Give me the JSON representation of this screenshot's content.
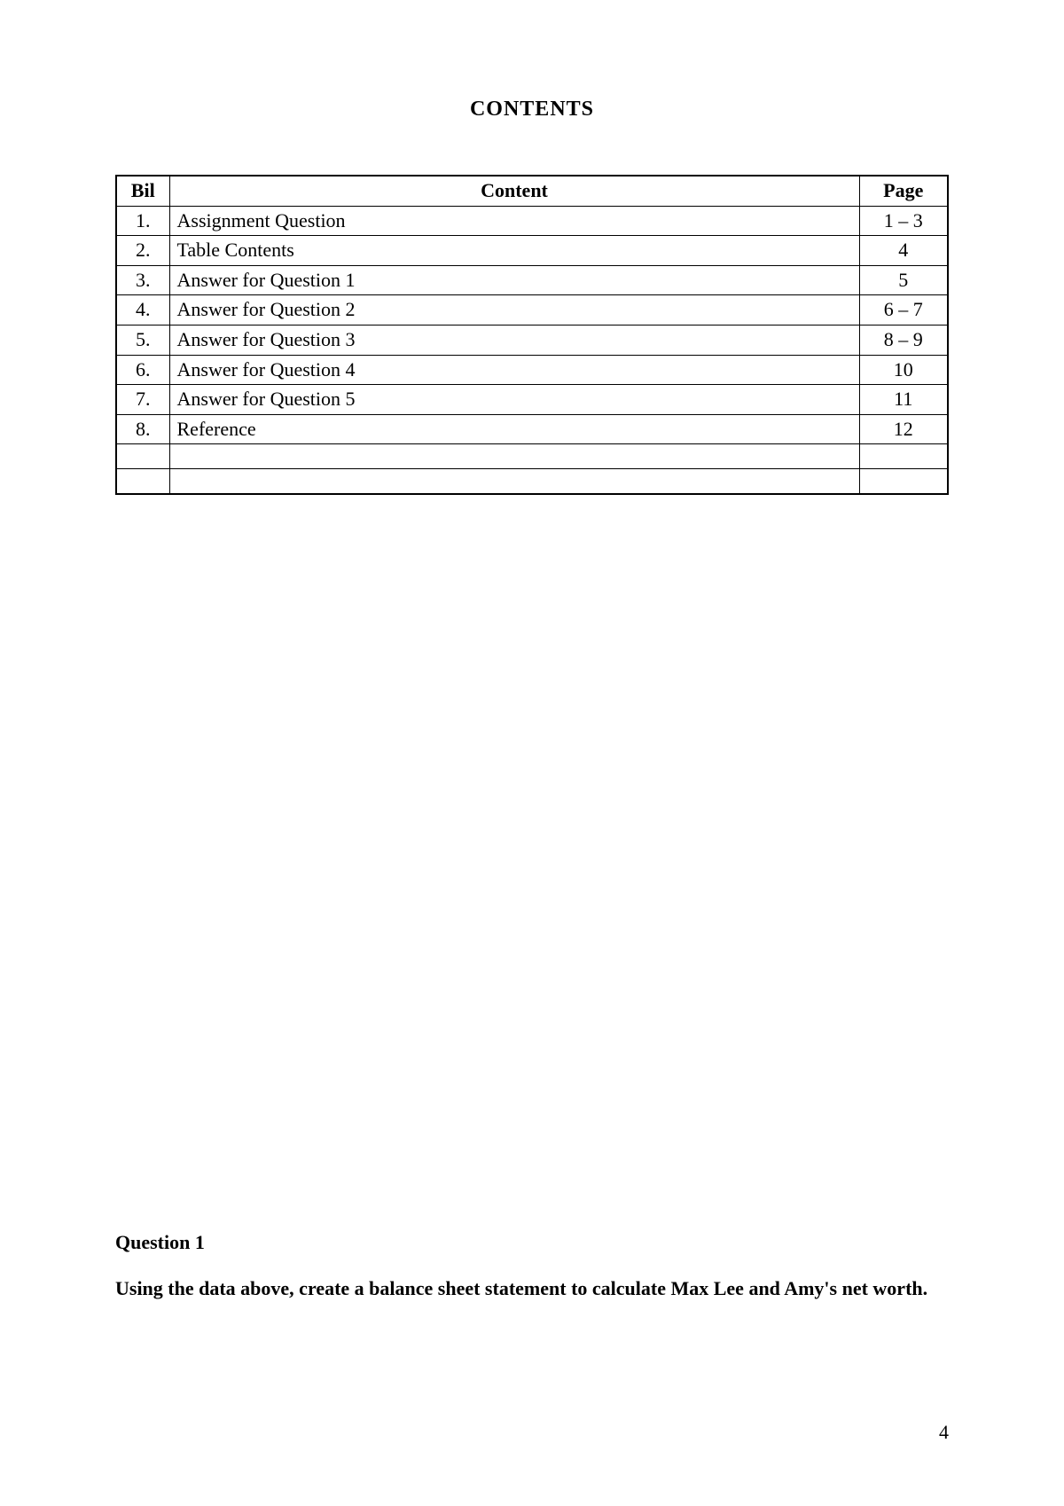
{
  "page": {
    "title": "CONTENTS",
    "page_number": "4"
  },
  "table": {
    "headers": {
      "bil": "Bil",
      "content": "Content",
      "page": "Page"
    },
    "rows": [
      {
        "bil": "1.",
        "content": "Assignment Question",
        "page": "1 – 3"
      },
      {
        "bil": "2.",
        "content": "Table Contents",
        "page": "4"
      },
      {
        "bil": "3.",
        "content": "Answer for Question 1",
        "page": "5"
      },
      {
        "bil": "4.",
        "content": "Answer for Question 2",
        "page": "6 – 7"
      },
      {
        "bil": "5.",
        "content": "Answer for Question 3",
        "page": "8 – 9"
      },
      {
        "bil": "6.",
        "content": "Answer for Question 4",
        "page": "10"
      },
      {
        "bil": "7.",
        "content": "Answer for Question 5",
        "page": "11"
      },
      {
        "bil": "8.",
        "content": "Reference",
        "page": "12"
      }
    ]
  },
  "question": {
    "heading": "Question 1",
    "text": "Using the data above, create a balance sheet statement to calculate Max Lee and Amy's net worth."
  },
  "styles": {
    "background_color": "#ffffff",
    "text_color": "#000000",
    "border_color": "#000000",
    "title_fontsize": 24,
    "body_fontsize": 22,
    "font_family": "Georgia, Times New Roman, serif"
  }
}
